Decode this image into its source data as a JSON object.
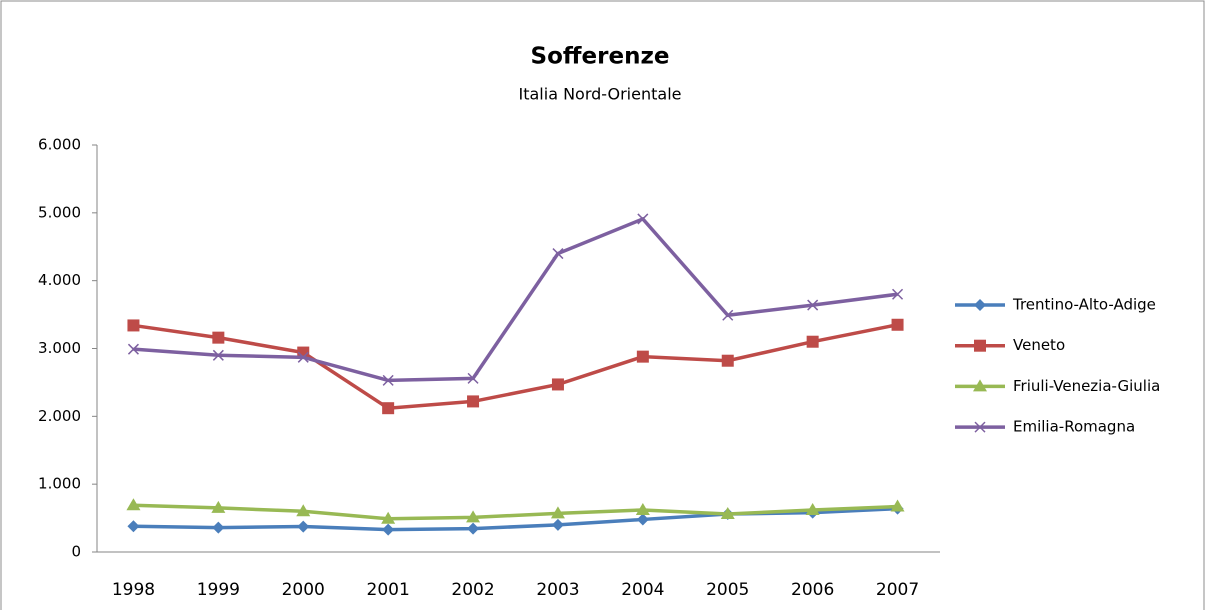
{
  "chart_data": {
    "type": "line",
    "title": "Sofferenze",
    "subtitle": "Italia Nord-Orientale",
    "categories": [
      "1998",
      "1999",
      "2000",
      "2001",
      "2002",
      "2003",
      "2004",
      "2005",
      "2006",
      "2007"
    ],
    "series": [
      {
        "name": "Trentino-Alto-Adige",
        "color": "#4a7ebb",
        "marker": "diamond",
        "values": [
          380,
          360,
          375,
          330,
          345,
          400,
          480,
          560,
          580,
          640
        ]
      },
      {
        "name": "Veneto",
        "color": "#be4b48",
        "marker": "square",
        "values": [
          3340,
          3160,
          2940,
          2120,
          2220,
          2470,
          2880,
          2820,
          3100,
          3350
        ]
      },
      {
        "name": "Friuli-Venezia-Giulia",
        "color": "#98b954",
        "marker": "triangle",
        "values": [
          690,
          650,
          600,
          490,
          510,
          570,
          620,
          560,
          620,
          670
        ]
      },
      {
        "name": "Emilia-Romagna",
        "color": "#7d60a0",
        "marker": "x",
        "values": [
          2990,
          2900,
          2870,
          2530,
          2560,
          4400,
          4910,
          3490,
          3640,
          3800
        ]
      }
    ],
    "ylim": [
      0,
      6000
    ],
    "yticks": [
      0,
      {
        "value": 1000,
        "label": "1.000"
      },
      {
        "value": 2000,
        "label": "2.000"
      },
      {
        "value": 3000,
        "label": "3.000"
      },
      {
        "value": 4000,
        "label": "4.000"
      },
      {
        "value": 5000,
        "label": "5.000"
      },
      {
        "value": 6000,
        "label": "6.000"
      }
    ],
    "legend": "right"
  }
}
